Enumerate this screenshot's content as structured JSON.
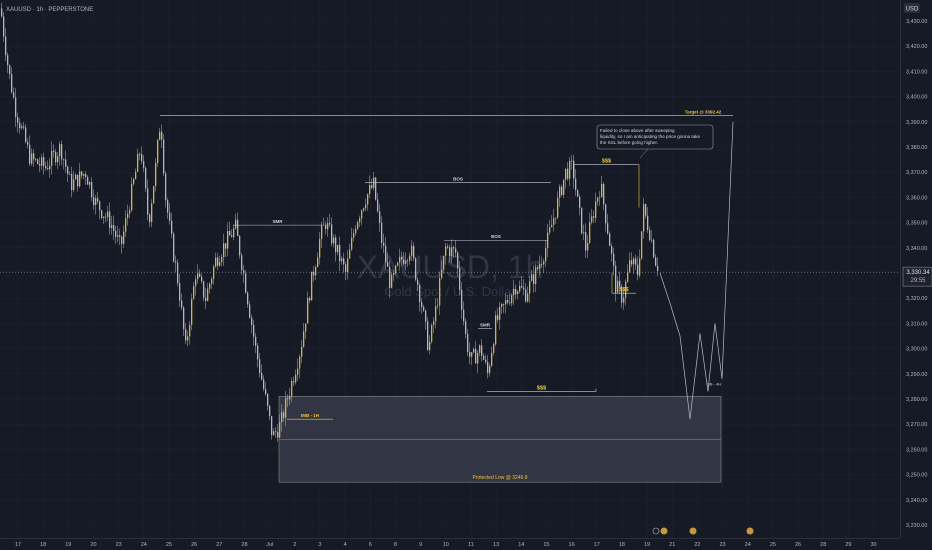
{
  "header": {
    "symbol_line": "XAUUSD · 1h · PEPPERSTONE",
    "currency": "USD"
  },
  "watermark": {
    "symbol": "XAUUSD, 1h",
    "name": "Gold Spot / U.S. Dollar"
  },
  "price_scale": {
    "last_price": "3,330.34",
    "countdown": "29:55"
  },
  "colors": {
    "background": "#161a25",
    "bull_candle": "#d9b349",
    "bear_candle": "#b3b7c7",
    "annotation": "#f0c23c",
    "zone": "#3c3f4e"
  },
  "chart_data": {
    "type": "candlestick",
    "y_axis": {
      "min": 3225,
      "max": 3440,
      "ticks": [
        "3,430.00",
        "3,420.00",
        "3,410.00",
        "3,400.00",
        "3,390.00",
        "3,380.00",
        "3,370.00",
        "3,360.00",
        "3,350.00",
        "3,340.00",
        "3,330.00",
        "3,320.00",
        "3,310.00",
        "3,300.00",
        "3,290.00",
        "3,280.00",
        "3,270.00",
        "3,260.00",
        "3,250.00",
        "3,240.00",
        "3,230.00"
      ]
    },
    "x_axis": {
      "ticks": [
        "17",
        "18",
        "19",
        "20",
        "23",
        "24",
        "25",
        "26",
        "27",
        "28",
        "Jul",
        "2",
        "3",
        "4",
        "6",
        "8",
        "9",
        "10",
        "11",
        "13",
        "14",
        "15",
        "16",
        "17",
        "18",
        "19",
        "21",
        "22",
        "23",
        "24",
        "25",
        "26",
        "28",
        "29",
        "30"
      ]
    },
    "price_path": [
      [
        0,
        3435
      ],
      [
        8,
        3410
      ],
      [
        15,
        3395
      ],
      [
        30,
        3375
      ],
      [
        45,
        3372
      ],
      [
        60,
        3380
      ],
      [
        70,
        3365
      ],
      [
        85,
        3370
      ],
      [
        95,
        3358
      ],
      [
        110,
        3350
      ],
      [
        120,
        3340
      ],
      [
        130,
        3360
      ],
      [
        140,
        3380
      ],
      [
        148,
        3350
      ],
      [
        155,
        3372
      ],
      [
        160,
        3392
      ],
      [
        165,
        3360
      ],
      [
        170,
        3345
      ],
      [
        178,
        3325
      ],
      [
        185,
        3300
      ],
      [
        195,
        3330
      ],
      [
        205,
        3320
      ],
      [
        215,
        3335
      ],
      [
        225,
        3342
      ],
      [
        235,
        3348
      ],
      [
        245,
        3325
      ],
      [
        255,
        3300
      ],
      [
        265,
        3280
      ],
      [
        272,
        3265
      ],
      [
        280,
        3270
      ],
      [
        290,
        3285
      ],
      [
        300,
        3300
      ],
      [
        310,
        3325
      ],
      [
        320,
        3345
      ],
      [
        325,
        3350
      ],
      [
        335,
        3340
      ],
      [
        345,
        3330
      ],
      [
        355,
        3350
      ],
      [
        365,
        3360
      ],
      [
        373,
        3365
      ],
      [
        380,
        3345
      ],
      [
        390,
        3325
      ],
      [
        400,
        3335
      ],
      [
        410,
        3340
      ],
      [
        420,
        3320
      ],
      [
        428,
        3300
      ],
      [
        435,
        3315
      ],
      [
        445,
        3340
      ],
      [
        455,
        3338
      ],
      [
        465,
        3305
      ],
      [
        470,
        3295
      ],
      [
        480,
        3300
      ],
      [
        487,
        3290
      ],
      [
        495,
        3310
      ],
      [
        505,
        3318
      ],
      [
        515,
        3325
      ],
      [
        525,
        3322
      ],
      [
        535,
        3330
      ],
      [
        545,
        3340
      ],
      [
        555,
        3355
      ],
      [
        565,
        3370
      ],
      [
        572,
        3372
      ],
      [
        578,
        3355
      ],
      [
        585,
        3340
      ],
      [
        595,
        3358
      ],
      [
        600,
        3365
      ],
      [
        608,
        3345
      ],
      [
        615,
        3325
      ],
      [
        622,
        3320
      ],
      [
        630,
        3335
      ],
      [
        637,
        3330
      ],
      [
        643,
        3355
      ],
      [
        650,
        3345
      ],
      [
        655,
        3335
      ],
      [
        660,
        3330
      ]
    ],
    "projection": [
      [
        660,
        3330
      ],
      [
        670,
        3318
      ],
      [
        680,
        3305
      ],
      [
        690,
        3272
      ],
      [
        700,
        3306
      ],
      [
        708,
        3283
      ],
      [
        715,
        3310
      ],
      [
        722,
        3288
      ],
      [
        733,
        3390
      ]
    ],
    "zones": [
      {
        "label": "Protected Low @ 3246.8",
        "from_x": 279,
        "to_x": 721,
        "top": 3281,
        "bottom": 3247,
        "mid": 3264
      }
    ],
    "levels": [
      {
        "label": "Target @ 3392.42",
        "price": 3392.42,
        "from_x": 160,
        "to_x": 733
      },
      {
        "label": "BOS",
        "price": 3366,
        "from_x": 365,
        "to_x": 551
      },
      {
        "label": "BOS",
        "price": 3343,
        "from_x": 444,
        "to_x": 548
      },
      {
        "label": "SMR",
        "price": 3349,
        "from_x": 233,
        "to_x": 322
      },
      {
        "label": "$$$",
        "price": 3373,
        "from_x": 574,
        "to_x": 639
      },
      {
        "label": "$$$",
        "price": 3322,
        "from_x": 612,
        "to_x": 636
      },
      {
        "label": "$$$",
        "price": 3283,
        "from_x": 487,
        "to_x": 596
      },
      {
        "label": "IMB - 1H",
        "price": 3272,
        "from_x": 287,
        "to_x": 333
      },
      {
        "label": "SMR",
        "price": 3308,
        "from_x": 478,
        "to_x": 492
      }
    ],
    "side_label": "OB - 4H",
    "note": "Failed to close above after sweeping liquidity, so I am anticipating the price gonna take the SSL before going higher.",
    "last_price_value": 3330.34
  }
}
